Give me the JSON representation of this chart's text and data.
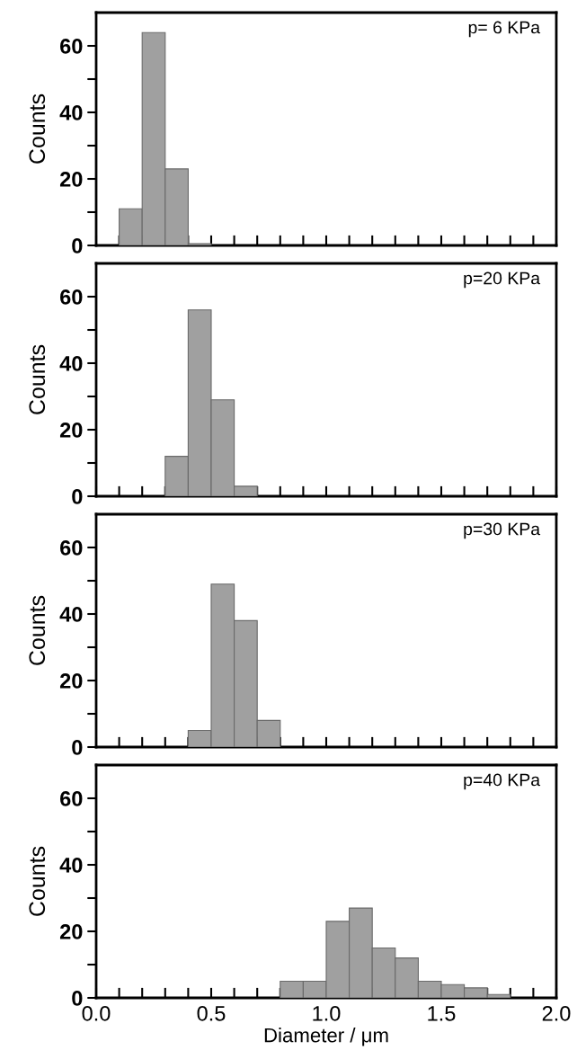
{
  "chart_data": [
    {
      "type": "histogram",
      "ylabel": "Counts",
      "annotations": [
        "p= 6 KPa"
      ],
      "bins": [
        0.1,
        0.2,
        0.3,
        0.4,
        0.5
      ],
      "values": [
        11,
        64,
        23,
        0.5
      ],
      "color": "#a0a0a0",
      "xlim": [
        0,
        2.0
      ],
      "ylim": [
        0,
        70
      ],
      "xticks": [
        {
          "value": 0.0,
          "label": null
        },
        {
          "value": 0.1,
          "label": null
        },
        {
          "value": 0.2,
          "label": null
        },
        {
          "value": 0.3,
          "label": null
        },
        {
          "value": 0.4,
          "label": null
        },
        {
          "value": 0.5,
          "label": null
        },
        {
          "value": 0.6,
          "label": null
        },
        {
          "value": 0.7,
          "label": null
        },
        {
          "value": 0.8,
          "label": null
        },
        {
          "value": 0.9,
          "label": null
        },
        {
          "value": 1.0,
          "label": null
        },
        {
          "value": 1.1,
          "label": null
        },
        {
          "value": 1.2,
          "label": null
        },
        {
          "value": 1.3,
          "label": null
        },
        {
          "value": 1.4,
          "label": null
        },
        {
          "value": 1.5,
          "label": null
        },
        {
          "value": 1.6,
          "label": null
        },
        {
          "value": 1.7,
          "label": null
        },
        {
          "value": 1.8,
          "label": null
        },
        {
          "value": 1.9,
          "label": null
        },
        {
          "value": 2.0,
          "label": null
        }
      ],
      "yticks": [
        0,
        {
          "value": 10,
          "label": null
        },
        20,
        {
          "value": 30,
          "label": null
        },
        40,
        {
          "value": 50,
          "label": null
        },
        60
      ],
      "tick_labels": "y",
      "grid": false
    },
    {
      "type": "histogram",
      "ylabel": "Counts",
      "annotations": [
        "p=20 KPa"
      ],
      "bins": [
        0.3,
        0.4,
        0.5,
        0.6,
        0.7
      ],
      "values": [
        12,
        56,
        29,
        3
      ],
      "color": "#a0a0a0",
      "xlim": [
        0,
        2.0
      ],
      "ylim": [
        0,
        70
      ],
      "xticks": [
        {
          "value": 0.0,
          "label": null
        },
        {
          "value": 0.1,
          "label": null
        },
        {
          "value": 0.2,
          "label": null
        },
        {
          "value": 0.3,
          "label": null
        },
        {
          "value": 0.4,
          "label": null
        },
        {
          "value": 0.5,
          "label": null
        },
        {
          "value": 0.6,
          "label": null
        },
        {
          "value": 0.7,
          "label": null
        },
        {
          "value": 0.8,
          "label": null
        },
        {
          "value": 0.9,
          "label": null
        },
        {
          "value": 1.0,
          "label": null
        },
        {
          "value": 1.1,
          "label": null
        },
        {
          "value": 1.2,
          "label": null
        },
        {
          "value": 1.3,
          "label": null
        },
        {
          "value": 1.4,
          "label": null
        },
        {
          "value": 1.5,
          "label": null
        },
        {
          "value": 1.6,
          "label": null
        },
        {
          "value": 1.7,
          "label": null
        },
        {
          "value": 1.8,
          "label": null
        },
        {
          "value": 1.9,
          "label": null
        },
        {
          "value": 2.0,
          "label": null
        }
      ],
      "yticks": [
        0,
        {
          "value": 10,
          "label": null
        },
        20,
        {
          "value": 30,
          "label": null
        },
        40,
        {
          "value": 50,
          "label": null
        },
        60
      ],
      "tick_labels": "y",
      "grid": false
    },
    {
      "type": "histogram",
      "ylabel": "Counts",
      "annotations": [
        "p=30 KPa"
      ],
      "bins": [
        0.4,
        0.5,
        0.6,
        0.7,
        0.8
      ],
      "values": [
        5,
        49,
        38,
        8
      ],
      "color": "#a0a0a0",
      "xlim": [
        0,
        2.0
      ],
      "ylim": [
        0,
        70
      ],
      "xticks": [
        {
          "value": 0.0,
          "label": null
        },
        {
          "value": 0.1,
          "label": null
        },
        {
          "value": 0.2,
          "label": null
        },
        {
          "value": 0.3,
          "label": null
        },
        {
          "value": 0.4,
          "label": null
        },
        {
          "value": 0.5,
          "label": null
        },
        {
          "value": 0.6,
          "label": null
        },
        {
          "value": 0.7,
          "label": null
        },
        {
          "value": 0.8,
          "label": null
        },
        {
          "value": 0.9,
          "label": null
        },
        {
          "value": 1.0,
          "label": null
        },
        {
          "value": 1.1,
          "label": null
        },
        {
          "value": 1.2,
          "label": null
        },
        {
          "value": 1.3,
          "label": null
        },
        {
          "value": 1.4,
          "label": null
        },
        {
          "value": 1.5,
          "label": null
        },
        {
          "value": 1.6,
          "label": null
        },
        {
          "value": 1.7,
          "label": null
        },
        {
          "value": 1.8,
          "label": null
        },
        {
          "value": 1.9,
          "label": null
        },
        {
          "value": 2.0,
          "label": null
        }
      ],
      "yticks": [
        0,
        {
          "value": 10,
          "label": null
        },
        20,
        {
          "value": 30,
          "label": null
        },
        40,
        {
          "value": 50,
          "label": null
        },
        60
      ],
      "tick_labels": "y",
      "grid": false
    },
    {
      "type": "histogram",
      "ylabel": "Counts",
      "xlabel": "Diameter / μm",
      "annotations": [
        "p=40 KPa"
      ],
      "bins": [
        0.8,
        0.9,
        1.0,
        1.1,
        1.2,
        1.3,
        1.4,
        1.5,
        1.6,
        1.7,
        1.8
      ],
      "values": [
        5,
        5,
        23,
        27,
        15,
        12,
        5,
        4,
        3,
        1
      ],
      "color": "#a0a0a0",
      "xlim": [
        0,
        2.0
      ],
      "ylim": [
        0,
        70
      ],
      "xticks": [
        {
          "value": 0.0,
          "label": "0.0"
        },
        {
          "value": 0.1,
          "label": null
        },
        {
          "value": 0.2,
          "label": null
        },
        {
          "value": 0.3,
          "label": null
        },
        {
          "value": 0.4,
          "label": null
        },
        {
          "value": 0.5,
          "label": "0.5"
        },
        {
          "value": 0.6,
          "label": null
        },
        {
          "value": 0.7,
          "label": null
        },
        {
          "value": 0.8,
          "label": null
        },
        {
          "value": 0.9,
          "label": null
        },
        {
          "value": 1.0,
          "label": "1.0"
        },
        {
          "value": 1.1,
          "label": null
        },
        {
          "value": 1.2,
          "label": null
        },
        {
          "value": 1.3,
          "label": null
        },
        {
          "value": 1.4,
          "label": null
        },
        {
          "value": 1.5,
          "label": "1.5"
        },
        {
          "value": 1.6,
          "label": null
        },
        {
          "value": 1.7,
          "label": null
        },
        {
          "value": 1.8,
          "label": null
        },
        {
          "value": 1.9,
          "label": null
        },
        {
          "value": 2.0,
          "label": "2.0"
        }
      ],
      "yticks": [
        0,
        {
          "value": 10,
          "label": null
        },
        20,
        {
          "value": 30,
          "label": null
        },
        40,
        {
          "value": 50,
          "label": null
        },
        60
      ],
      "grid": false
    }
  ]
}
